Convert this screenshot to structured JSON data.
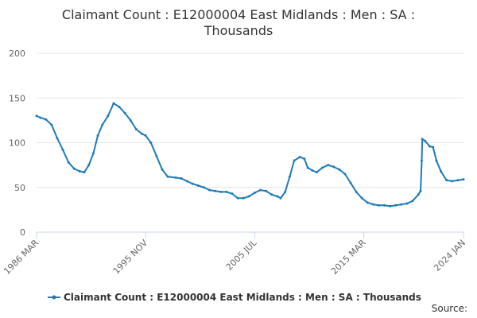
{
  "chart_data": {
    "type": "line",
    "title": "Claimant Count : E12000004 East Midlands : Men : SA : Thousands",
    "source": "Source:",
    "series": [
      {
        "name": "Claimant Count : E12000004 East Midlands : Men : SA : Thousands",
        "color": "#1f7bb6",
        "x": [
          1986.17,
          1986.5,
          1987.0,
          1987.5,
          1988.0,
          1988.5,
          1989.0,
          1989.5,
          1990.0,
          1990.4,
          1990.8,
          1991.2,
          1991.6,
          1992.0,
          1992.5,
          1993.0,
          1993.5,
          1994.0,
          1994.5,
          1995.0,
          1995.5,
          1995.83,
          1996.3,
          1996.8,
          1997.3,
          1997.8,
          1998.5,
          1999.0,
          1999.5,
          2000.0,
          2000.5,
          2001.0,
          2001.5,
          2002.0,
          2002.5,
          2003.0,
          2003.5,
          2004.0,
          2004.5,
          2005.0,
          2005.5,
          2006.0,
          2006.5,
          2007.0,
          2007.5,
          2007.8,
          2008.2,
          2008.6,
          2009.0,
          2009.5,
          2009.9,
          2010.2,
          2010.6,
          2011.0,
          2011.5,
          2012.0,
          2012.5,
          2013.0,
          2013.5,
          2014.0,
          2014.5,
          2015.0,
          2015.5,
          2016.0,
          2016.5,
          2017.0,
          2017.5,
          2018.0,
          2018.5,
          2019.0,
          2019.5,
          2020.0,
          2020.2,
          2020.3,
          2020.35,
          2020.6,
          2021.0,
          2021.3,
          2021.6,
          2022.0,
          2022.5,
          2023.0,
          2023.5,
          2024.0
        ],
        "values": [
          130,
          128,
          126,
          120,
          105,
          92,
          78,
          71,
          68,
          67,
          75,
          88,
          108,
          120,
          130,
          144,
          140,
          133,
          125,
          115,
          110,
          108,
          100,
          85,
          70,
          62,
          61,
          60,
          57,
          54,
          52,
          50,
          47,
          46,
          45,
          45,
          43,
          38,
          38,
          40,
          44,
          47,
          46,
          42,
          40,
          38,
          45,
          62,
          80,
          84,
          82,
          72,
          69,
          67,
          72,
          75,
          73,
          70,
          65,
          55,
          45,
          38,
          33,
          31,
          30,
          30,
          29,
          30,
          31,
          32,
          35,
          42,
          46,
          80,
          104,
          102,
          96,
          95,
          80,
          68,
          58,
          57,
          58,
          59
        ]
      }
    ],
    "xlim": [
      1986.17,
      2024.0
    ],
    "xticks": [
      {
        "value": 1986.17,
        "label": "1986 MAR"
      },
      {
        "value": 1995.83,
        "label": "1995 NOV"
      },
      {
        "value": 2005.5,
        "label": "2005 JUL"
      },
      {
        "value": 2015.17,
        "label": "2015 MAR"
      },
      {
        "value": 2024.0,
        "label": "2024 JAN"
      }
    ],
    "ylim": [
      0,
      200
    ],
    "yticks": [
      0,
      50,
      100,
      150,
      200
    ],
    "grid": true,
    "legend": "bottom"
  }
}
